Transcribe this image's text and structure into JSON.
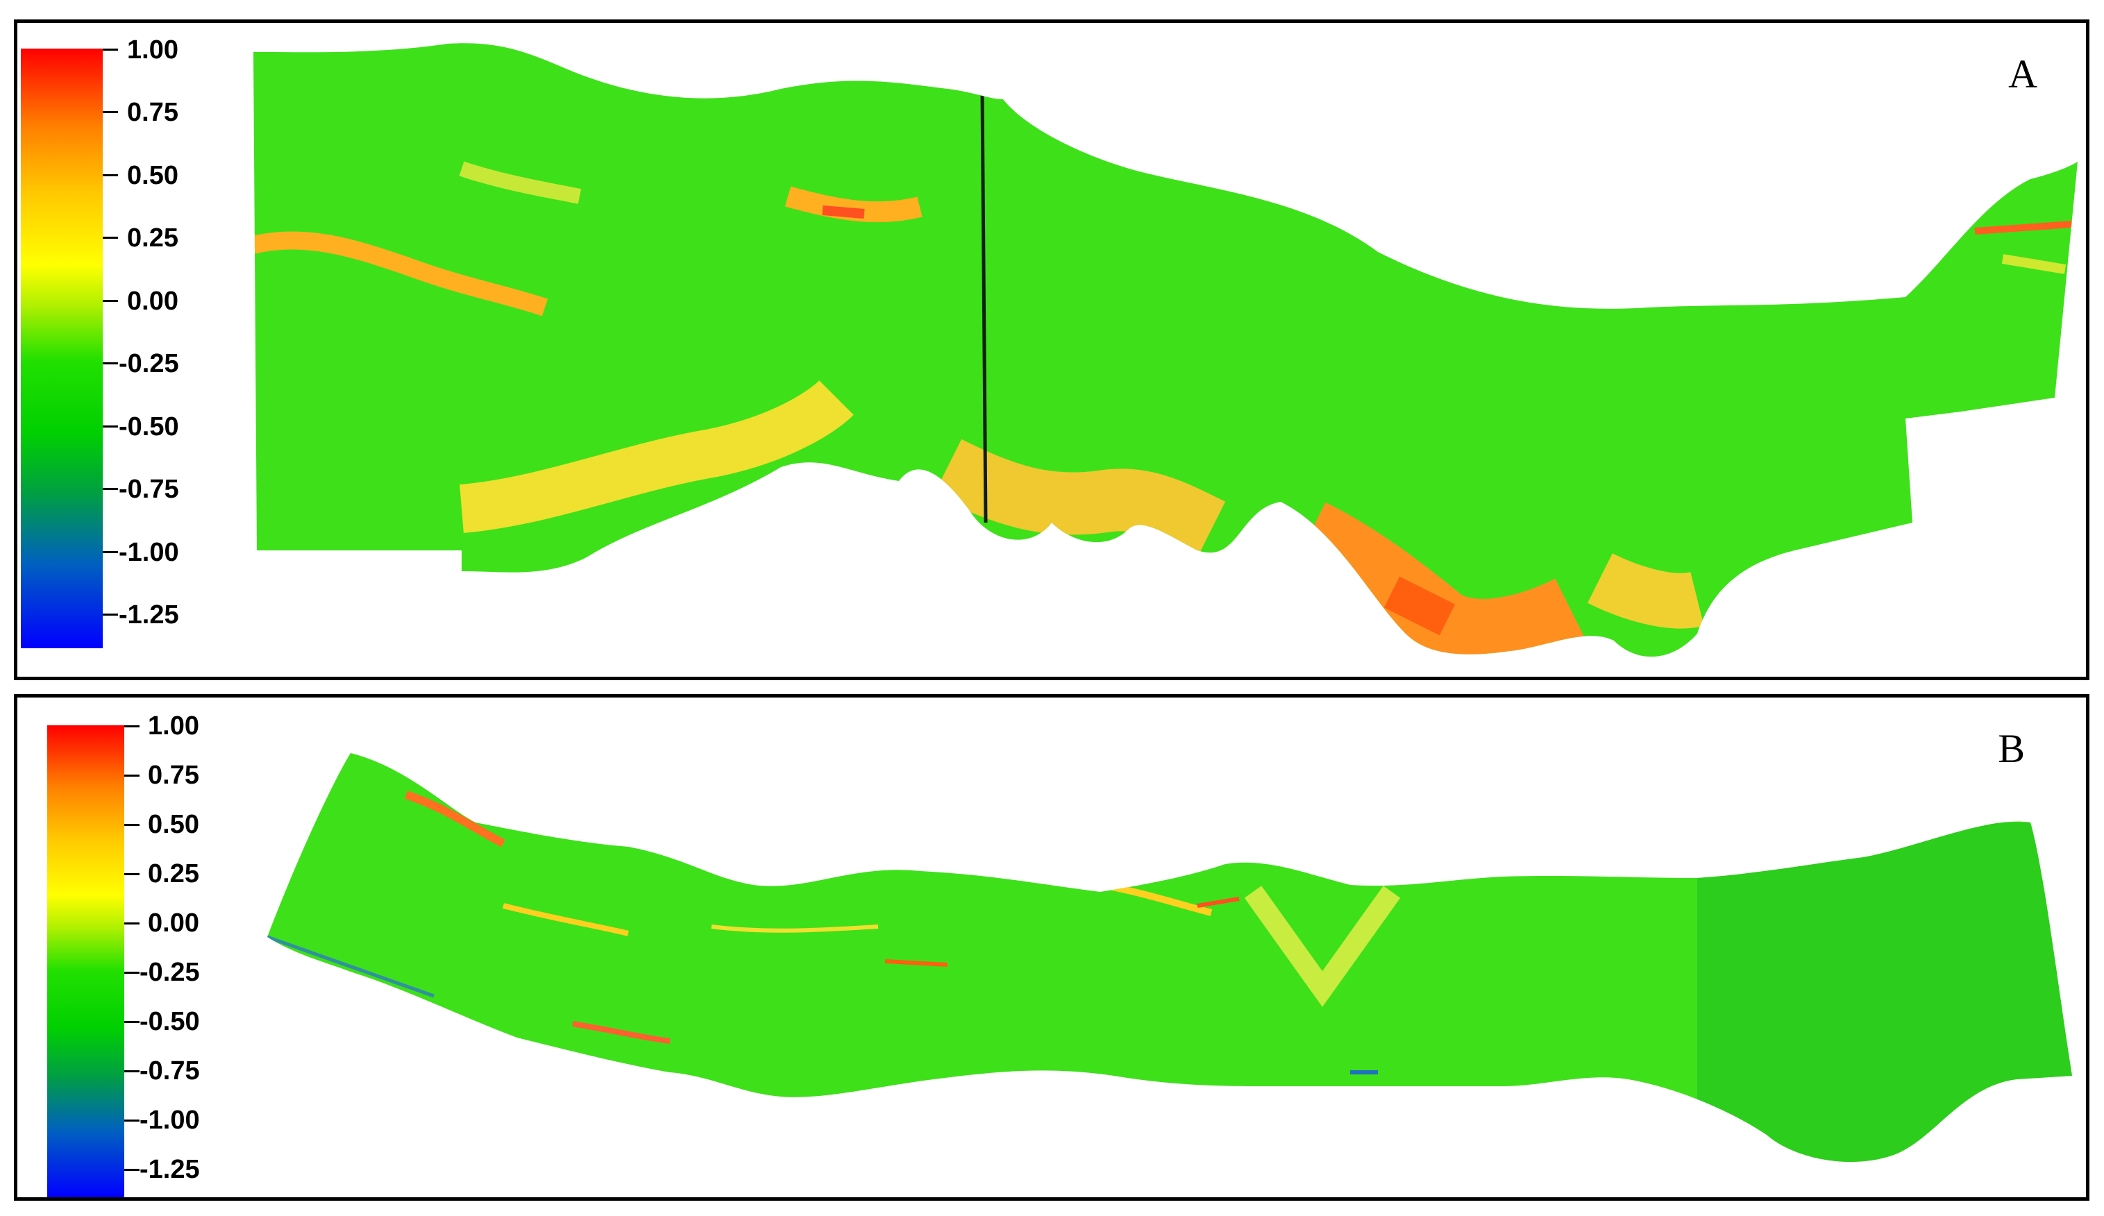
{
  "panels": [
    {
      "label": "A",
      "colorbar_ticks": [
        "1.00",
        "0.75",
        "0.50",
        "0.25",
        "0.00",
        "-0.25",
        "-0.50",
        "-0.75",
        "-1.00",
        "-1.25"
      ]
    },
    {
      "label": "B",
      "colorbar_ticks": [
        "1.00",
        "0.75",
        "0.50",
        "0.25",
        "0.00",
        "-0.25",
        "-0.50",
        "-0.75",
        "-1.00",
        "-1.25"
      ]
    }
  ],
  "colors": {
    "max": "#ff0000",
    "high": "#ff8000",
    "mid_high": "#ffc800",
    "zero": "#ffff00",
    "mid_low": "#22e000",
    "low": "#00a040",
    "min": "#0000ff",
    "base_green": "#3ee01a"
  }
}
